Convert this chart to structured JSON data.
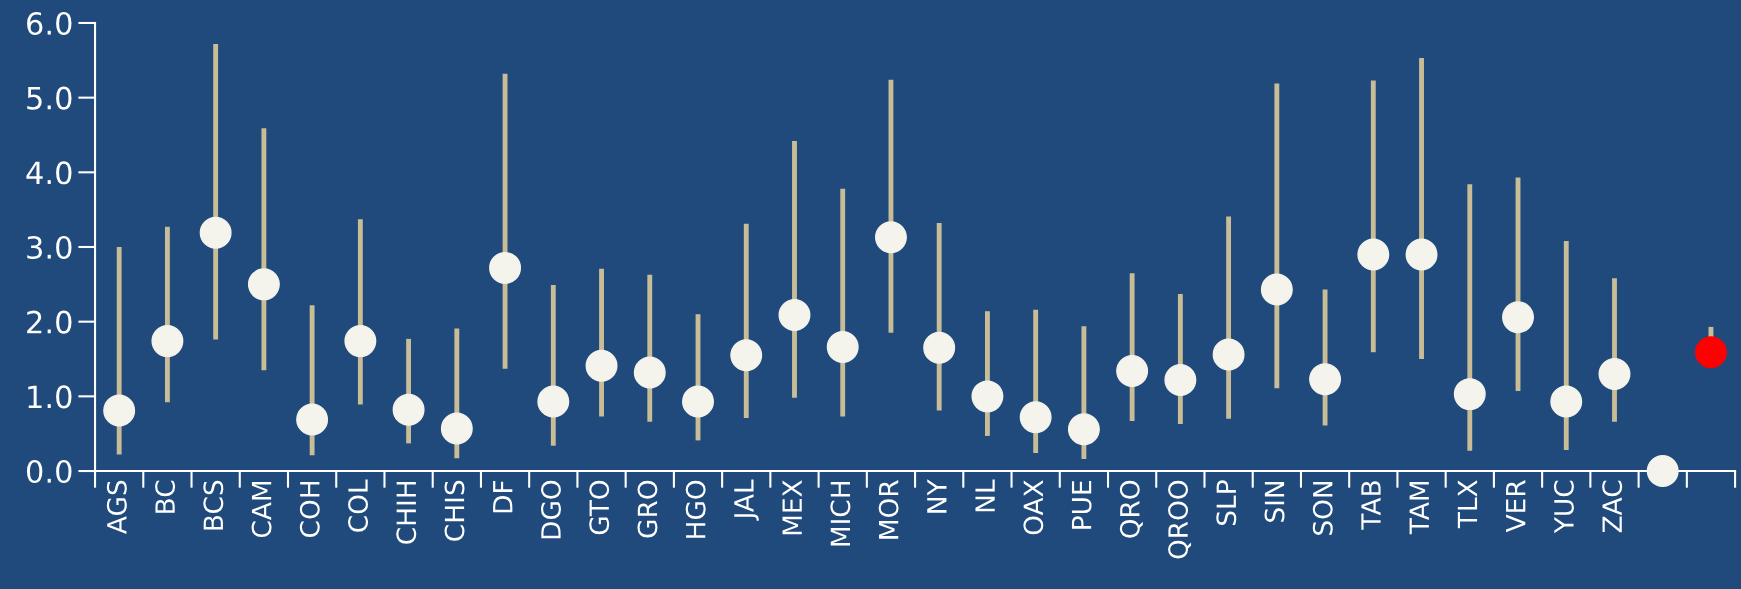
{
  "chart_data": {
    "type": "scatter",
    "categories": [
      "AGS",
      "BC",
      "BCS",
      "CAM",
      "COH",
      "COL",
      "CHIH",
      "CHIS",
      "DF",
      "DGO",
      "GTO",
      "GRO",
      "HGO",
      "JAL",
      "MEX",
      "MICH",
      "MOR",
      "NY",
      "NL",
      "OAX",
      "PUE",
      "QRO",
      "QROO",
      "SLP",
      "SIN",
      "SON",
      "TAB",
      "TAM",
      "TLX",
      "VER",
      "YUC",
      "ZAC",
      null,
      null
    ],
    "values": [
      0.81,
      1.74,
      3.19,
      2.5,
      0.69,
      1.74,
      0.82,
      0.57,
      2.72,
      0.93,
      1.41,
      1.32,
      0.93,
      1.55,
      2.09,
      1.66,
      3.13,
      1.65,
      1.0,
      0.72,
      0.56,
      1.34,
      1.22,
      1.56,
      2.43,
      1.23,
      2.9,
      2.9,
      1.03,
      2.06,
      0.93,
      1.3,
      0,
      1.59
    ],
    "errors": [
      [
        0.22,
        3.0
      ],
      [
        0.92,
        3.27
      ],
      [
        1.76,
        5.72
      ],
      [
        1.35,
        4.59
      ],
      [
        0.21,
        2.22
      ],
      [
        0.89,
        3.37
      ],
      [
        0.37,
        1.77
      ],
      [
        0.17,
        1.91
      ],
      [
        1.37,
        5.32
      ],
      [
        0.34,
        2.49
      ],
      [
        0.73,
        2.71
      ],
      [
        0.66,
        2.63
      ],
      [
        0.41,
        2.1
      ],
      [
        0.71,
        3.31
      ],
      [
        0.98,
        4.42
      ],
      [
        0.73,
        3.78
      ],
      [
        1.85,
        5.24
      ],
      [
        0.81,
        3.32
      ],
      [
        0.47,
        2.14
      ],
      [
        0.24,
        2.16
      ],
      [
        0.16,
        1.94
      ],
      [
        0.67,
        2.65
      ],
      [
        0.63,
        2.37
      ],
      [
        0.7,
        3.41
      ],
      [
        1.11,
        5.19
      ],
      [
        0.61,
        2.43
      ],
      [
        1.59,
        5.23
      ],
      [
        1.5,
        5.53
      ],
      [
        0.27,
        3.84
      ],
      [
        1.07,
        3.93
      ],
      [
        0.28,
        3.08
      ],
      [
        0.66,
        2.58
      ],
      null,
      [
        1.59,
        1.93
      ]
    ],
    "colors": [
      "#f4f3ec",
      "#f4f3ec",
      "#f4f3ec",
      "#f4f3ec",
      "#f4f3ec",
      "#f4f3ec",
      "#f4f3ec",
      "#f4f3ec",
      "#f4f3ec",
      "#f4f3ec",
      "#f4f3ec",
      "#f4f3ec",
      "#f4f3ec",
      "#f4f3ec",
      "#f4f3ec",
      "#f4f3ec",
      "#f4f3ec",
      "#f4f3ec",
      "#f4f3ec",
      "#f4f3ec",
      "#f4f3ec",
      "#f4f3ec",
      "#f4f3ec",
      "#f4f3ec",
      "#f4f3ec",
      "#f4f3ec",
      "#f4f3ec",
      "#f4f3ec",
      "#f4f3ec",
      "#f4f3ec",
      "#f4f3ec",
      "#f4f3ec",
      "#f4f3ec",
      "#ff0000"
    ],
    "ylim": [
      0,
      6
    ],
    "yticks": [
      {
        "value": 0,
        "label": "0.0"
      },
      {
        "value": 1,
        "label": "1.0"
      },
      {
        "value": 2,
        "label": "2.0"
      },
      {
        "value": 3,
        "label": "3.0"
      },
      {
        "value": 4,
        "label": "4.0"
      },
      {
        "value": 5,
        "label": "5.0"
      },
      {
        "value": 6,
        "label": "6.0"
      }
    ],
    "grid": false,
    "marker": "circle"
  }
}
